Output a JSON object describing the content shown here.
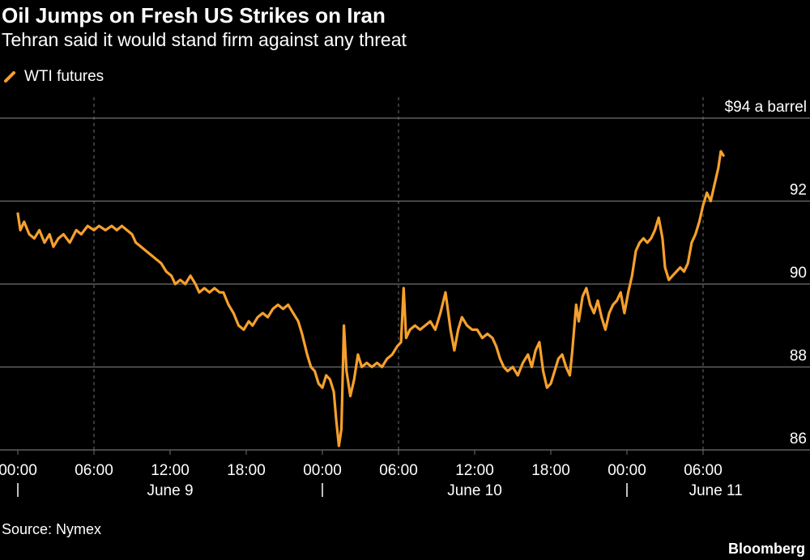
{
  "title": "Oil Jumps on Fresh US Strikes on Iran",
  "subtitle": "Tehran said it would stand firm against any threat",
  "source": "Source: Nymex",
  "brand": "Bloomberg",
  "colors": {
    "series": "#F6A02C",
    "grid": "#6f6f6f",
    "background": "#000000",
    "text": "#ffffff"
  },
  "chart_data": {
    "type": "line",
    "title": "Oil Jumps on Fresh US Strikes on Iran",
    "subtitle": "Tehran said it would stand firm against any threat",
    "y_unit_label": "$94 a barrel",
    "ylim": [
      86,
      94
    ],
    "y_ticks": [
      86,
      88,
      90,
      92,
      94
    ],
    "y_tick_labels": [
      "86",
      "88",
      "90",
      "92",
      "$94 a barrel"
    ],
    "xlim_hours": [
      0,
      62
    ],
    "x_ticks": [
      {
        "hour": 0,
        "label": "00:00"
      },
      {
        "hour": 6,
        "label": "06:00"
      },
      {
        "hour": 12,
        "label": "12:00"
      },
      {
        "hour": 18,
        "label": "18:00"
      },
      {
        "hour": 24,
        "label": "00:00"
      },
      {
        "hour": 30,
        "label": "06:00"
      },
      {
        "hour": 36,
        "label": "12:00"
      },
      {
        "hour": 42,
        "label": "18:00"
      },
      {
        "hour": 48,
        "label": "00:00"
      },
      {
        "hour": 54,
        "label": "06:00"
      }
    ],
    "dashed_gridlines_hours": [
      6,
      30,
      54
    ],
    "day_labels": [
      {
        "label": "June 9",
        "center_hour": 12,
        "tick_hour": 0
      },
      {
        "label": "June 10",
        "center_hour": 36,
        "tick_hour": 24
      },
      {
        "label": "June 11",
        "center_hour": 55,
        "tick_hour": 48
      }
    ],
    "grid": true,
    "legend_position": "top-left",
    "series": [
      {
        "name": "WTI futures",
        "color": "#F6A02C",
        "points": [
          [
            0.0,
            91.7
          ],
          [
            0.2,
            91.3
          ],
          [
            0.5,
            91.5
          ],
          [
            0.9,
            91.2
          ],
          [
            1.3,
            91.1
          ],
          [
            1.7,
            91.3
          ],
          [
            2.1,
            91.0
          ],
          [
            2.5,
            91.2
          ],
          [
            2.8,
            90.9
          ],
          [
            3.2,
            91.1
          ],
          [
            3.6,
            91.2
          ],
          [
            4.1,
            91.0
          ],
          [
            4.6,
            91.3
          ],
          [
            5.0,
            91.2
          ],
          [
            5.5,
            91.4
          ],
          [
            6.0,
            91.3
          ],
          [
            6.4,
            91.4
          ],
          [
            6.9,
            91.3
          ],
          [
            7.4,
            91.4
          ],
          [
            7.8,
            91.3
          ],
          [
            8.2,
            91.4
          ],
          [
            8.6,
            91.3
          ],
          [
            9.0,
            91.2
          ],
          [
            9.3,
            91.0
          ],
          [
            9.7,
            90.9
          ],
          [
            10.1,
            90.8
          ],
          [
            10.5,
            90.7
          ],
          [
            10.9,
            90.6
          ],
          [
            11.3,
            90.5
          ],
          [
            11.7,
            90.3
          ],
          [
            12.1,
            90.2
          ],
          [
            12.4,
            90.0
          ],
          [
            12.8,
            90.1
          ],
          [
            13.2,
            90.0
          ],
          [
            13.6,
            90.2
          ],
          [
            14.0,
            90.0
          ],
          [
            14.3,
            89.8
          ],
          [
            14.7,
            89.9
          ],
          [
            15.1,
            89.8
          ],
          [
            15.5,
            89.9
          ],
          [
            15.9,
            89.8
          ],
          [
            16.2,
            89.8
          ],
          [
            16.6,
            89.5
          ],
          [
            17.0,
            89.3
          ],
          [
            17.4,
            89.0
          ],
          [
            17.8,
            88.9
          ],
          [
            18.2,
            89.1
          ],
          [
            18.5,
            89.0
          ],
          [
            18.9,
            89.2
          ],
          [
            19.3,
            89.3
          ],
          [
            19.7,
            89.2
          ],
          [
            20.1,
            89.4
          ],
          [
            20.5,
            89.5
          ],
          [
            20.9,
            89.4
          ],
          [
            21.3,
            89.5
          ],
          [
            21.7,
            89.3
          ],
          [
            22.1,
            89.1
          ],
          [
            22.4,
            88.8
          ],
          [
            22.8,
            88.3
          ],
          [
            23.1,
            88.0
          ],
          [
            23.4,
            87.9
          ],
          [
            23.7,
            87.6
          ],
          [
            24.0,
            87.5
          ],
          [
            24.3,
            87.8
          ],
          [
            24.6,
            87.7
          ],
          [
            24.9,
            87.4
          ],
          [
            25.1,
            86.7
          ],
          [
            25.3,
            86.1
          ],
          [
            25.5,
            86.5
          ],
          [
            25.7,
            89.0
          ],
          [
            25.9,
            87.9
          ],
          [
            26.2,
            87.3
          ],
          [
            26.5,
            87.7
          ],
          [
            26.8,
            88.3
          ],
          [
            27.1,
            88.0
          ],
          [
            27.5,
            88.1
          ],
          [
            27.9,
            88.0
          ],
          [
            28.3,
            88.1
          ],
          [
            28.7,
            88.0
          ],
          [
            29.1,
            88.2
          ],
          [
            29.5,
            88.3
          ],
          [
            29.9,
            88.5
          ],
          [
            30.2,
            88.6
          ],
          [
            30.4,
            89.9
          ],
          [
            30.6,
            88.7
          ],
          [
            30.9,
            88.9
          ],
          [
            31.3,
            89.0
          ],
          [
            31.7,
            88.9
          ],
          [
            32.1,
            89.0
          ],
          [
            32.5,
            89.1
          ],
          [
            32.9,
            88.9
          ],
          [
            33.3,
            89.3
          ],
          [
            33.7,
            89.8
          ],
          [
            34.1,
            88.9
          ],
          [
            34.4,
            88.4
          ],
          [
            34.7,
            88.9
          ],
          [
            35.0,
            89.2
          ],
          [
            35.4,
            89.0
          ],
          [
            35.8,
            88.9
          ],
          [
            36.2,
            88.9
          ],
          [
            36.6,
            88.7
          ],
          [
            37.0,
            88.8
          ],
          [
            37.4,
            88.7
          ],
          [
            37.7,
            88.5
          ],
          [
            38.0,
            88.2
          ],
          [
            38.3,
            88.0
          ],
          [
            38.6,
            87.9
          ],
          [
            39.0,
            88.0
          ],
          [
            39.4,
            87.8
          ],
          [
            39.8,
            88.1
          ],
          [
            40.2,
            88.3
          ],
          [
            40.5,
            88.0
          ],
          [
            40.8,
            88.4
          ],
          [
            41.1,
            88.6
          ],
          [
            41.4,
            87.9
          ],
          [
            41.7,
            87.5
          ],
          [
            42.0,
            87.6
          ],
          [
            42.3,
            87.9
          ],
          [
            42.6,
            88.2
          ],
          [
            42.9,
            88.3
          ],
          [
            43.2,
            88.0
          ],
          [
            43.5,
            87.8
          ],
          [
            43.7,
            88.4
          ],
          [
            44.0,
            89.5
          ],
          [
            44.2,
            89.1
          ],
          [
            44.5,
            89.7
          ],
          [
            44.8,
            89.9
          ],
          [
            45.1,
            89.5
          ],
          [
            45.4,
            89.3
          ],
          [
            45.7,
            89.6
          ],
          [
            46.0,
            89.2
          ],
          [
            46.3,
            88.9
          ],
          [
            46.6,
            89.3
          ],
          [
            46.9,
            89.5
          ],
          [
            47.2,
            89.6
          ],
          [
            47.5,
            89.8
          ],
          [
            47.8,
            89.3
          ],
          [
            48.1,
            89.8
          ],
          [
            48.4,
            90.2
          ],
          [
            48.7,
            90.8
          ],
          [
            49.0,
            91.0
          ],
          [
            49.3,
            91.1
          ],
          [
            49.6,
            91.0
          ],
          [
            49.9,
            91.1
          ],
          [
            50.2,
            91.3
          ],
          [
            50.5,
            91.6
          ],
          [
            50.8,
            91.1
          ],
          [
            51.0,
            90.4
          ],
          [
            51.3,
            90.1
          ],
          [
            51.6,
            90.2
          ],
          [
            51.9,
            90.3
          ],
          [
            52.2,
            90.4
          ],
          [
            52.5,
            90.3
          ],
          [
            52.8,
            90.5
          ],
          [
            53.1,
            91.0
          ],
          [
            53.4,
            91.2
          ],
          [
            53.7,
            91.5
          ],
          [
            54.0,
            91.9
          ],
          [
            54.3,
            92.2
          ],
          [
            54.6,
            92.0
          ],
          [
            54.9,
            92.4
          ],
          [
            55.2,
            92.8
          ],
          [
            55.4,
            93.2
          ],
          [
            55.6,
            93.1
          ]
        ]
      }
    ]
  }
}
